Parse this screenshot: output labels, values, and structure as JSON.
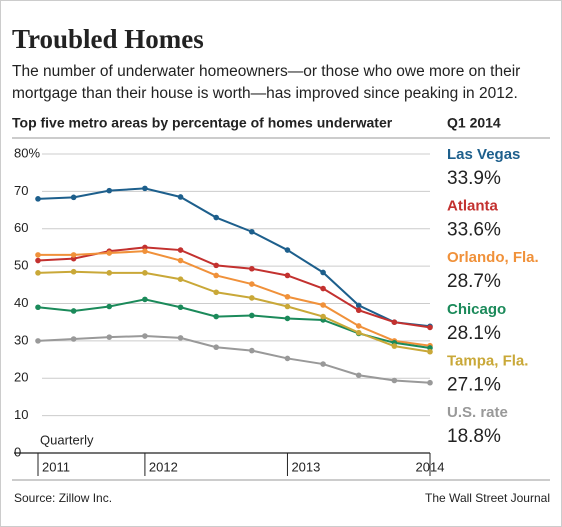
{
  "chart_data": {
    "type": "line",
    "title": "Troubled Homes",
    "subtitle": [
      "The number of underwater homeowners—or those who owe more on their",
      "mortgage than their house is worth—has improved since peaking in 2012."
    ],
    "chart_heading": "Top five metro areas by percentage of homes underwater",
    "legend_heading": "Q1 2014",
    "x_label": "Quarterly",
    "source": "Source: Zillow Inc.",
    "credit": "The Wall Street Journal",
    "categories": [
      "2011",
      null,
      null,
      "2012",
      null,
      null,
      null,
      "2013",
      null,
      null,
      null,
      "2014"
    ],
    "ylim": [
      0,
      80
    ],
    "yticks": [
      0,
      10,
      20,
      30,
      40,
      50,
      60,
      70,
      {
        "value": 80,
        "label": "80%"
      }
    ],
    "grid": true,
    "series": [
      {
        "name": "Las Vegas",
        "color": "#1d5f8c",
        "values": [
          68,
          68.4,
          70.2,
          70.8,
          68.5,
          63,
          59.2,
          54.3,
          48.3,
          39.5,
          35,
          33.9
        ],
        "value_labels": [
          null,
          null,
          null,
          null,
          null,
          null,
          null,
          null,
          null,
          null,
          null,
          "33.9%"
        ]
      },
      {
        "name": "Atlanta",
        "color": "#c3312f",
        "values": [
          51.5,
          52,
          54,
          55,
          54.3,
          50.2,
          49.3,
          47.5,
          44,
          38.2,
          35,
          33.6
        ],
        "value_labels": [
          null,
          null,
          null,
          null,
          null,
          null,
          null,
          null,
          null,
          null,
          null,
          "33.6%"
        ]
      },
      {
        "name": "Orlando, Fla.",
        "color": "#f0913a",
        "values": [
          53,
          53,
          53.5,
          54,
          51.5,
          47.5,
          45.2,
          41.8,
          39.6,
          34,
          30,
          28.7
        ],
        "value_labels": [
          null,
          null,
          null,
          null,
          null,
          null,
          null,
          null,
          null,
          null,
          null,
          "28.7%"
        ]
      },
      {
        "name": "Chicago",
        "color": "#1b8a5a",
        "values": [
          39,
          38,
          39.2,
          41.1,
          39,
          36.5,
          36.8,
          36,
          35.6,
          32,
          29.5,
          28.1
        ],
        "value_labels": [
          null,
          null,
          null,
          null,
          null,
          null,
          null,
          null,
          null,
          null,
          null,
          "28.1%"
        ]
      },
      {
        "name": "Tampa, Fla.",
        "color": "#c9a838",
        "values": [
          48.2,
          48.5,
          48.2,
          48.2,
          46.5,
          43,
          41.5,
          39.2,
          36.5,
          32.2,
          28.6,
          27.1
        ],
        "value_labels": [
          null,
          null,
          null,
          null,
          null,
          null,
          null,
          null,
          null,
          null,
          null,
          "27.1%"
        ]
      },
      {
        "name": "U.S. rate",
        "color": "#999999",
        "values": [
          30,
          30.5,
          31,
          31.3,
          30.8,
          28.3,
          27.4,
          25.3,
          23.8,
          20.8,
          19.4,
          18.8
        ],
        "value_labels": [
          null,
          null,
          null,
          null,
          null,
          null,
          null,
          null,
          null,
          null,
          null,
          "18.8%"
        ]
      }
    ]
  }
}
